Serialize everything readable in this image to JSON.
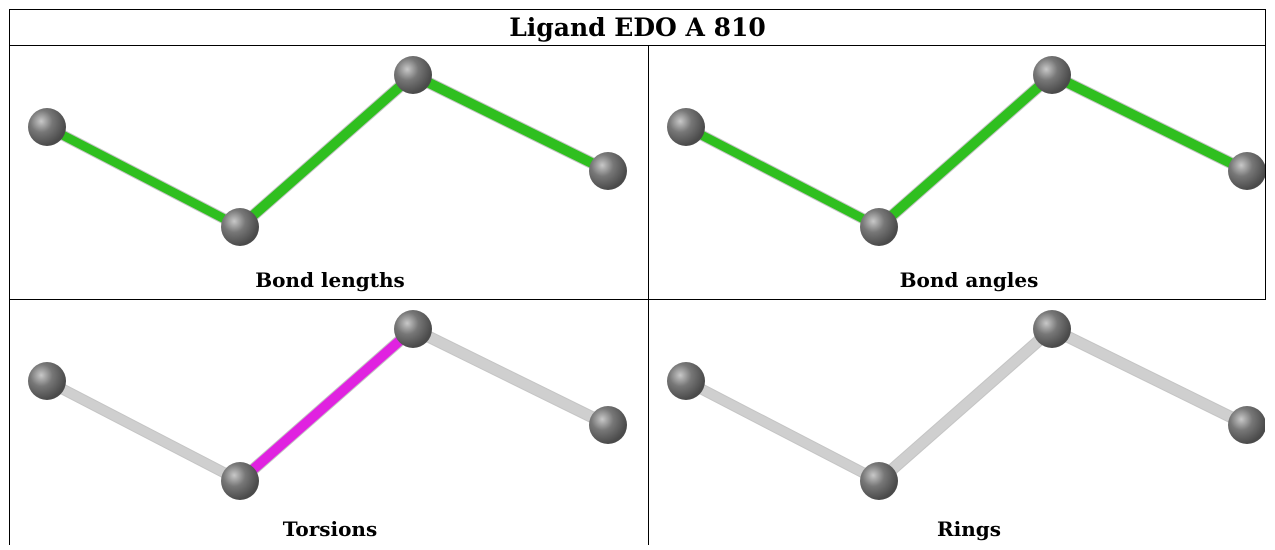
{
  "table": {
    "title": "Ligand EDO A 810",
    "panels": [
      {
        "caption": "Bond lengths",
        "bond_colors": [
          "#2fbf1f",
          "#2fbf1f",
          "#2fbf1f"
        ]
      },
      {
        "caption": "Bond angles",
        "bond_colors": [
          "#2fbf1f",
          "#2fbf1f",
          "#2fbf1f"
        ]
      },
      {
        "caption": "Torsions",
        "bond_colors": [
          "#cfcfcf",
          "#e022e0",
          "#cfcfcf"
        ]
      },
      {
        "caption": "Rings",
        "bond_colors": [
          "#cfcfcf",
          "#cfcfcf",
          "#cfcfcf"
        ]
      }
    ],
    "atom_color": "#777777"
  }
}
